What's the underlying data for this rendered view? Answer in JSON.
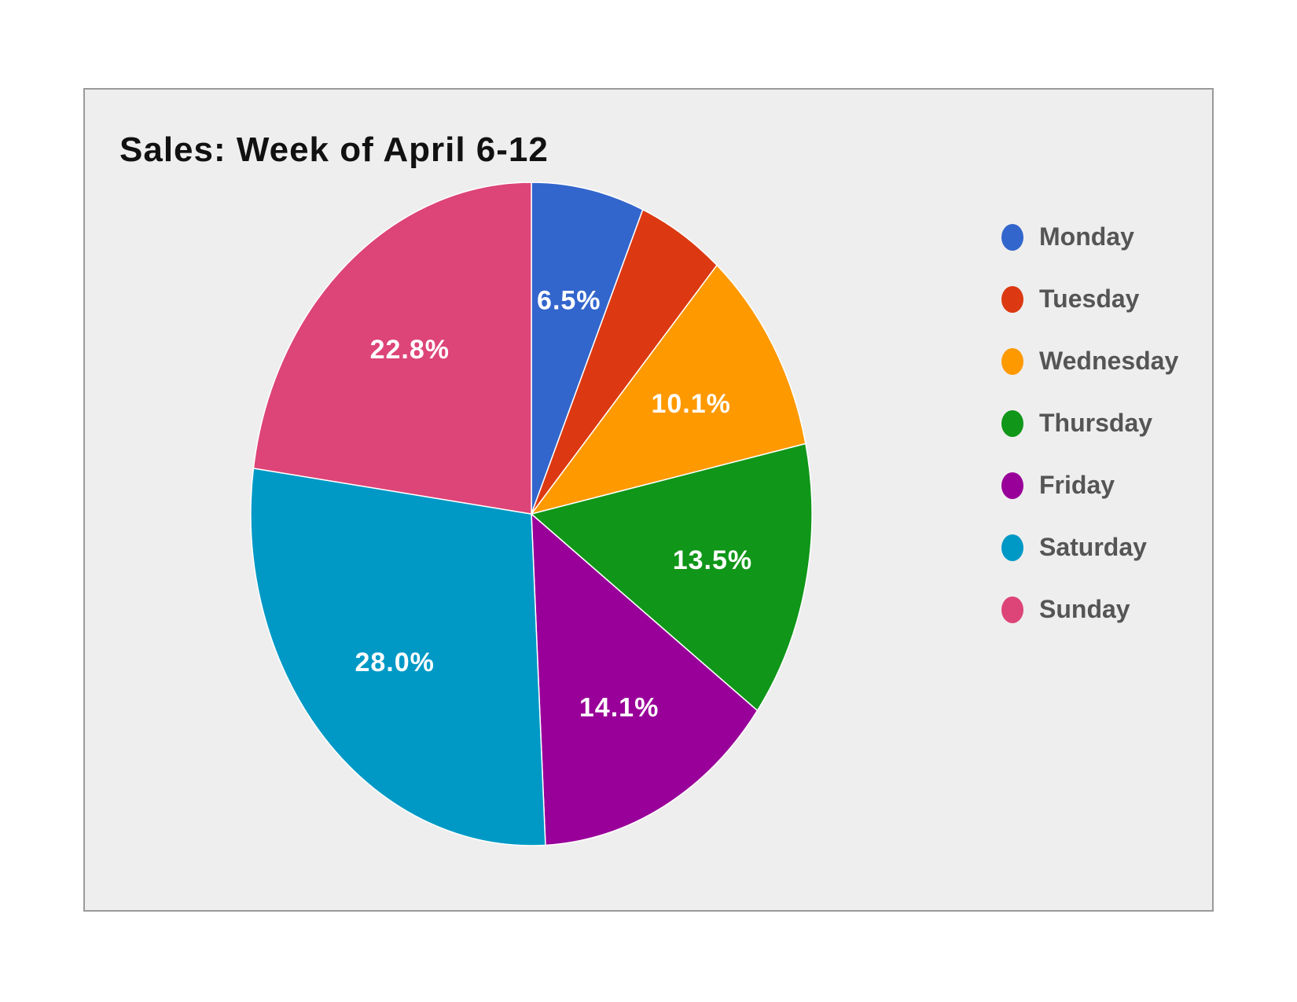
{
  "chart_data": {
    "type": "pie",
    "title": "Sales: Week of April 6-12",
    "slices": [
      {
        "label": "Monday",
        "value": 6.5,
        "display": "6.5%",
        "color": "#3366cc"
      },
      {
        "label": "Tuesday",
        "value": 5.0,
        "display": "",
        "color": "#dc3912"
      },
      {
        "label": "Wednesday",
        "value": 10.1,
        "display": "10.1%",
        "color": "#ff9900"
      },
      {
        "label": "Thursday",
        "value": 13.5,
        "display": "13.5%",
        "color": "#109618"
      },
      {
        "label": "Friday",
        "value": 14.1,
        "display": "14.1%",
        "color": "#990099"
      },
      {
        "label": "Saturday",
        "value": 28.0,
        "display": "28.0%",
        "color": "#0099c6"
      },
      {
        "label": "Sunday",
        "value": 22.8,
        "display": "22.8%",
        "color": "#dd4477"
      }
    ],
    "start_angle": "12 o'clock",
    "direction": "clockwise",
    "legend_position": "right"
  }
}
